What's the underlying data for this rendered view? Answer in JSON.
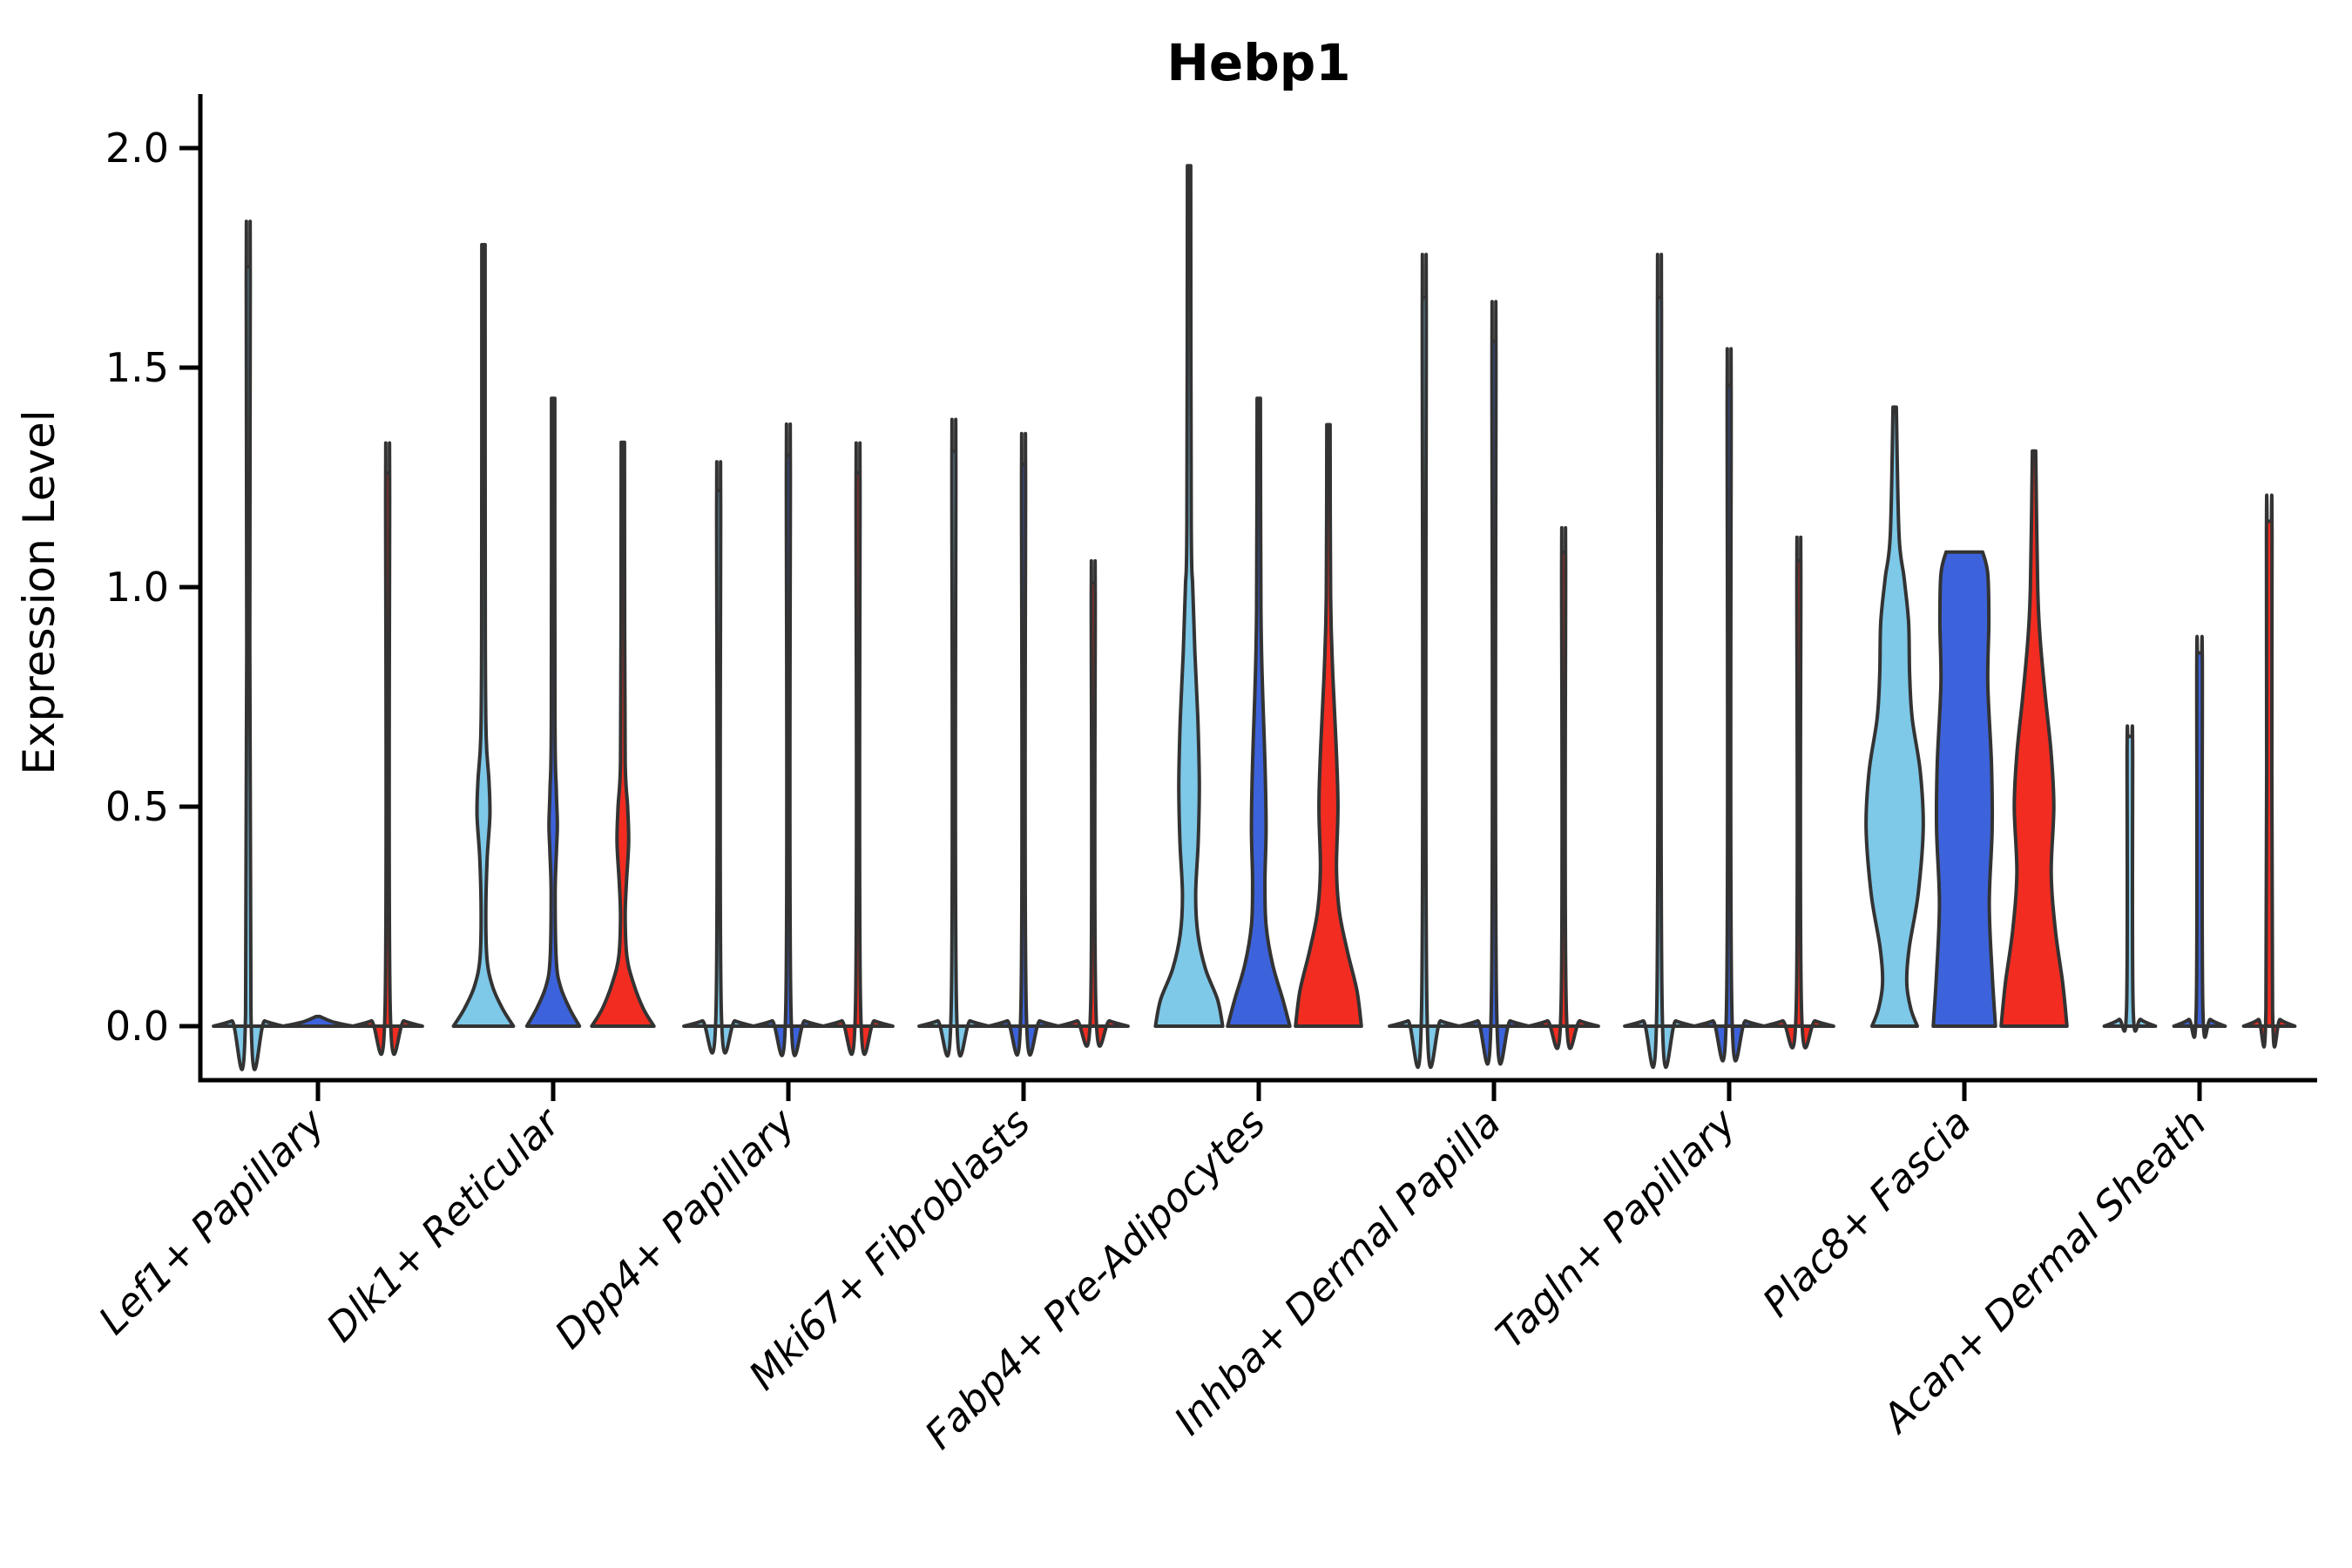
{
  "chart_data": {
    "type": "violin",
    "title": "Hebp1",
    "ylabel": "Expression Level",
    "xlabel": "",
    "ylim": [
      0,
      2.0
    ],
    "yticks": [
      0.0,
      0.5,
      1.0,
      1.5,
      2.0
    ],
    "ytick_labels": [
      "0.0",
      "0.5",
      "1.0",
      "1.5",
      "2.0"
    ],
    "grid": "off",
    "legend": "none",
    "series_colors": [
      "#7EC8E8",
      "#3C63DB",
      "#F22C21"
    ],
    "outline_color": "#333333",
    "categories": [
      "Lef1+ Papillary",
      "Dlk1+ Reticular",
      "Dpp4+ Papillary",
      "Mki67+ Fibroblasts",
      "Fabp4+ Pre-Adipocytes",
      "Inhba+ Dermal Papilla",
      "Tagln+ Papillary",
      "Plac8+ Fascia",
      "Acan+ Dermal Sheath"
    ],
    "groups": [
      {
        "category": "Lef1+ Papillary",
        "violins": [
          {
            "max": 1.73,
            "profile": [
              [
                0,
                0.95
              ],
              [
                0.012,
                0.45
              ],
              [
                0.03,
                0.075
              ],
              [
                1.7,
                0.055
              ],
              [
                1.73,
                0.05
              ]
            ]
          },
          {
            "max": 0.0,
            "profile": [
              [
                0,
                0.95
              ],
              [
                0.01,
                0.4
              ],
              [
                0.022,
                0.05
              ]
            ]
          },
          {
            "max": 1.26,
            "profile": [
              [
                0,
                0.95
              ],
              [
                0.012,
                0.45
              ],
              [
                0.03,
                0.075
              ],
              [
                1.23,
                0.055
              ],
              [
                1.26,
                0.05
              ]
            ]
          }
        ]
      },
      {
        "category": "Dlk1+ Reticular",
        "violins": [
          {
            "max": 1.78,
            "profile": [
              [
                0,
                0.82
              ],
              [
                0.04,
                0.52
              ],
              [
                0.09,
                0.25
              ],
              [
                0.15,
                0.1
              ],
              [
                0.25,
                0.065
              ],
              [
                0.38,
                0.1
              ],
              [
                0.48,
                0.175
              ],
              [
                0.56,
                0.15
              ],
              [
                0.66,
                0.075
              ],
              [
                0.9,
                0.05
              ],
              [
                1.78,
                0.045
              ]
            ]
          },
          {
            "max": 1.43,
            "profile": [
              [
                0,
                0.72
              ],
              [
                0.04,
                0.45
              ],
              [
                0.09,
                0.2
              ],
              [
                0.15,
                0.085
              ],
              [
                0.3,
                0.055
              ],
              [
                0.4,
                0.09
              ],
              [
                0.46,
                0.115
              ],
              [
                0.54,
                0.085
              ],
              [
                0.7,
                0.05
              ],
              [
                1.43,
                0.045
              ]
            ]
          },
          {
            "max": 1.33,
            "profile": [
              [
                0,
                0.85
              ],
              [
                0.04,
                0.56
              ],
              [
                0.1,
                0.28
              ],
              [
                0.16,
                0.11
              ],
              [
                0.25,
                0.065
              ],
              [
                0.33,
                0.1
              ],
              [
                0.42,
                0.16
              ],
              [
                0.5,
                0.13
              ],
              [
                0.6,
                0.065
              ],
              [
                0.9,
                0.05
              ],
              [
                1.33,
                0.045
              ]
            ]
          }
        ]
      },
      {
        "category": "Dpp4+ Papillary",
        "violins": [
          {
            "max": 1.22,
            "profile": [
              [
                0,
                0.95
              ],
              [
                0.012,
                0.45
              ],
              [
                0.03,
                0.075
              ],
              [
                1.19,
                0.055
              ],
              [
                1.22,
                0.05
              ]
            ]
          },
          {
            "max": 1.3,
            "profile": [
              [
                0,
                0.95
              ],
              [
                0.012,
                0.45
              ],
              [
                0.03,
                0.075
              ],
              [
                1.27,
                0.055
              ],
              [
                1.3,
                0.05
              ]
            ]
          },
          {
            "max": 1.26,
            "profile": [
              [
                0,
                0.95
              ],
              [
                0.012,
                0.45
              ],
              [
                0.03,
                0.075
              ],
              [
                1.23,
                0.055
              ],
              [
                1.26,
                0.05
              ]
            ]
          }
        ]
      },
      {
        "category": "Mki67+ Fibroblasts",
        "violins": [
          {
            "max": 1.31,
            "profile": [
              [
                0,
                0.95
              ],
              [
                0.012,
                0.45
              ],
              [
                0.03,
                0.075
              ],
              [
                1.28,
                0.055
              ],
              [
                1.31,
                0.05
              ]
            ]
          },
          {
            "max": 1.28,
            "profile": [
              [
                0,
                0.95
              ],
              [
                0.012,
                0.45
              ],
              [
                0.03,
                0.075
              ],
              [
                1.25,
                0.055
              ],
              [
                1.28,
                0.05
              ]
            ]
          },
          {
            "max": 1.01,
            "profile": [
              [
                0,
                0.95
              ],
              [
                0.012,
                0.45
              ],
              [
                0.03,
                0.075
              ],
              [
                0.98,
                0.055
              ],
              [
                1.01,
                0.05
              ]
            ]
          }
        ]
      },
      {
        "category": "Fabp4+ Pre-Adipocytes",
        "violins": [
          {
            "max": 1.96,
            "profile": [
              [
                0,
                0.92
              ],
              [
                0.06,
                0.78
              ],
              [
                0.13,
                0.45
              ],
              [
                0.21,
                0.24
              ],
              [
                0.3,
                0.18
              ],
              [
                0.42,
                0.25
              ],
              [
                0.55,
                0.28
              ],
              [
                0.7,
                0.24
              ],
              [
                0.85,
                0.16
              ],
              [
                1.0,
                0.1
              ],
              [
                1.15,
                0.06
              ],
              [
                1.96,
                0.045
              ]
            ]
          },
          {
            "max": 1.43,
            "profile": [
              [
                0,
                0.85
              ],
              [
                0.06,
                0.66
              ],
              [
                0.14,
                0.38
              ],
              [
                0.23,
                0.2
              ],
              [
                0.33,
                0.17
              ],
              [
                0.45,
                0.2
              ],
              [
                0.6,
                0.17
              ],
              [
                0.75,
                0.11
              ],
              [
                0.95,
                0.06
              ],
              [
                1.43,
                0.045
              ]
            ]
          },
          {
            "max": 1.37,
            "profile": [
              [
                0,
                0.9
              ],
              [
                0.08,
                0.78
              ],
              [
                0.17,
                0.52
              ],
              [
                0.26,
                0.3
              ],
              [
                0.36,
                0.22
              ],
              [
                0.5,
                0.26
              ],
              [
                0.64,
                0.21
              ],
              [
                0.8,
                0.12
              ],
              [
                0.98,
                0.06
              ],
              [
                1.37,
                0.045
              ]
            ]
          }
        ]
      },
      {
        "category": "Inhba+ Dermal Papilla",
        "violins": [
          {
            "max": 1.66,
            "profile": [
              [
                0,
                0.95
              ],
              [
                0.012,
                0.45
              ],
              [
                0.03,
                0.075
              ],
              [
                1.63,
                0.055
              ],
              [
                1.66,
                0.05
              ]
            ]
          },
          {
            "max": 1.56,
            "profile": [
              [
                0,
                0.95
              ],
              [
                0.012,
                0.45
              ],
              [
                0.03,
                0.075
              ],
              [
                1.53,
                0.055
              ],
              [
                1.56,
                0.05
              ]
            ]
          },
          {
            "max": 1.08,
            "profile": [
              [
                0,
                0.95
              ],
              [
                0.012,
                0.45
              ],
              [
                0.03,
                0.075
              ],
              [
                1.05,
                0.055
              ],
              [
                1.08,
                0.05
              ]
            ]
          }
        ]
      },
      {
        "category": "Tagln+ Papillary",
        "violins": [
          {
            "max": 1.66,
            "profile": [
              [
                0,
                0.95
              ],
              [
                0.012,
                0.45
              ],
              [
                0.03,
                0.075
              ],
              [
                1.63,
                0.055
              ],
              [
                1.66,
                0.05
              ]
            ]
          },
          {
            "max": 1.46,
            "profile": [
              [
                0,
                0.95
              ],
              [
                0.012,
                0.45
              ],
              [
                0.03,
                0.075
              ],
              [
                1.43,
                0.055
              ],
              [
                1.46,
                0.05
              ]
            ]
          },
          {
            "max": 1.06,
            "profile": [
              [
                0,
                0.95
              ],
              [
                0.012,
                0.45
              ],
              [
                0.03,
                0.075
              ],
              [
                1.03,
                0.055
              ],
              [
                1.06,
                0.05
              ]
            ]
          }
        ]
      },
      {
        "category": "Plac8+ Fascia",
        "violins": [
          {
            "max": 1.41,
            "profile": [
              [
                0,
                0.62
              ],
              [
                0.04,
                0.44
              ],
              [
                0.1,
                0.33
              ],
              [
                0.18,
                0.4
              ],
              [
                0.3,
                0.64
              ],
              [
                0.45,
                0.78
              ],
              [
                0.58,
                0.7
              ],
              [
                0.7,
                0.48
              ],
              [
                0.8,
                0.41
              ],
              [
                0.92,
                0.38
              ],
              [
                1.02,
                0.26
              ],
              [
                1.12,
                0.12
              ],
              [
                1.41,
                0.045
              ]
            ]
          },
          {
            "max": 1.08,
            "flat_top": true,
            "profile": [
              [
                0,
                0.85
              ],
              [
                0.12,
                0.76
              ],
              [
                0.28,
                0.68
              ],
              [
                0.45,
                0.76
              ],
              [
                0.6,
                0.74
              ],
              [
                0.78,
                0.64
              ],
              [
                0.92,
                0.67
              ],
              [
                1.03,
                0.64
              ],
              [
                1.08,
                0.5
              ]
            ]
          },
          {
            "max": 1.31,
            "profile": [
              [
                0,
                0.9
              ],
              [
                0.1,
                0.78
              ],
              [
                0.22,
                0.58
              ],
              [
                0.35,
                0.47
              ],
              [
                0.5,
                0.54
              ],
              [
                0.62,
                0.47
              ],
              [
                0.75,
                0.31
              ],
              [
                0.88,
                0.17
              ],
              [
                1.0,
                0.1
              ],
              [
                1.31,
                0.045
              ]
            ]
          }
        ]
      },
      {
        "category": "Acan+ Dermal Sheath",
        "violins": [
          {
            "max": 0.66,
            "profile": [
              [
                0,
                0.7
              ],
              [
                0.015,
                0.3
              ],
              [
                0.04,
                0.09
              ],
              [
                0.63,
                0.075
              ],
              [
                0.66,
                0.06
              ]
            ]
          },
          {
            "max": 0.85,
            "profile": [
              [
                0,
                0.7
              ],
              [
                0.015,
                0.3
              ],
              [
                0.04,
                0.09
              ],
              [
                0.82,
                0.075
              ],
              [
                0.85,
                0.06
              ]
            ]
          },
          {
            "max": 1.15,
            "profile": [
              [
                0,
                0.7
              ],
              [
                0.015,
                0.3
              ],
              [
                0.04,
                0.09
              ],
              [
                1.12,
                0.075
              ],
              [
                1.15,
                0.06
              ]
            ]
          }
        ]
      }
    ]
  }
}
